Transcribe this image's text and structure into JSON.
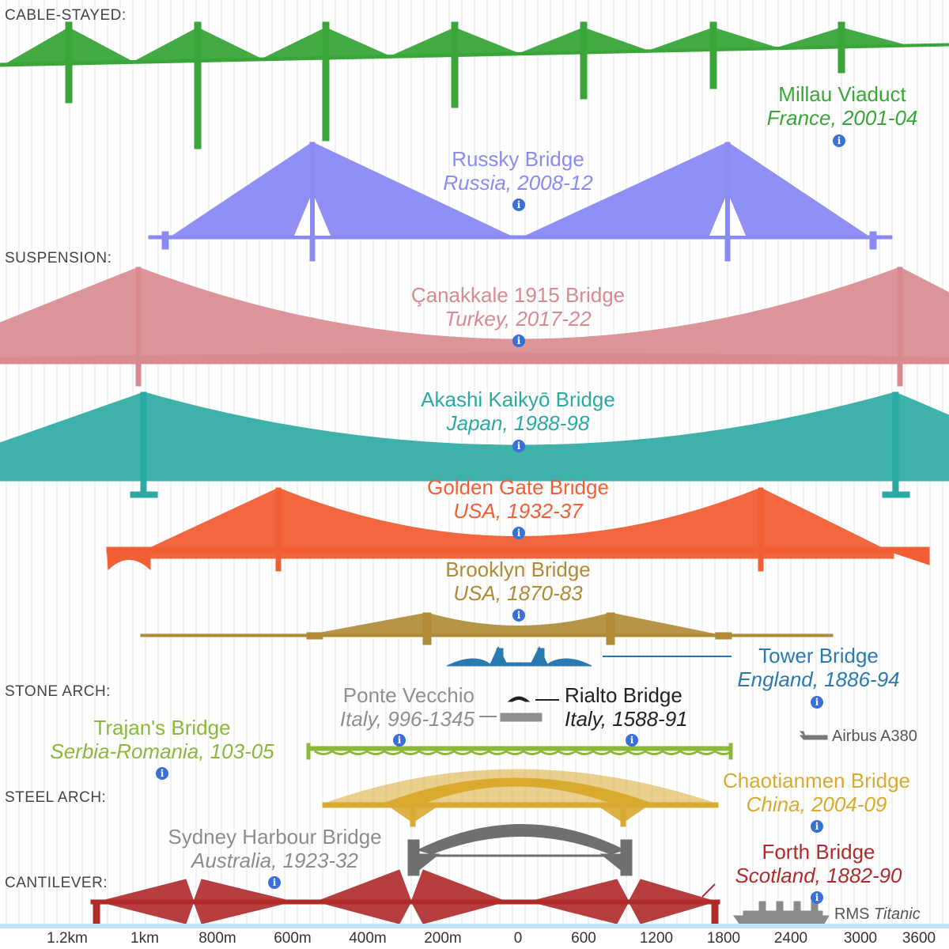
{
  "categories": {
    "cable_stayed": "CABLE-STAYED:",
    "suspension": "SUSPENSION:",
    "stone_arch": "STONE ARCH:",
    "steel_arch": "STEEL ARCH:",
    "cantilever": "CANTILEVER:"
  },
  "bridges": {
    "millau": {
      "name": "Millau Viaduct",
      "sub": "France, 2001-04",
      "color": "#3aa63a"
    },
    "russky": {
      "name": "Russky Bridge",
      "sub": "Russia, 2008-12",
      "color": "#8a8af5"
    },
    "canakkale": {
      "name": "Çanakkale 1915 Bridge",
      "sub": "Turkey, 2017-22",
      "color": "#d98a8e"
    },
    "akashi": {
      "name": "Akashi Kaikyō Bridge",
      "sub": "Japan, 1988-98",
      "color": "#2ba9a3"
    },
    "golden_gate": {
      "name": "Golden Gate Bridge",
      "sub": "USA, 1932-37",
      "color": "#f25f35"
    },
    "brooklyn": {
      "name": "Brooklyn Bridge",
      "sub": "USA, 1870-83",
      "color": "#b08a35"
    },
    "tower": {
      "name": "Tower Bridge",
      "sub": "England, 1886-94",
      "color": "#2a7ab0"
    },
    "ponte_vecchio": {
      "name": "Ponte Vecchio",
      "sub": "Italy, 996-1345",
      "color": "#8f8f8f"
    },
    "rialto": {
      "name": "Rialto Bridge",
      "sub": "Italy, 1588-91",
      "color": "#222222"
    },
    "trajan": {
      "name": "Trajan's Bridge",
      "sub": "Serbia-Romania, 103-05",
      "color": "#8ab83a"
    },
    "chaotianmen": {
      "name": "Chaotianmen Bridge",
      "sub": "China, 2004-09",
      "color": "#d9aa30"
    },
    "sydney": {
      "name": "Sydney Harbour Bridge",
      "sub": "Australia, 1923-32",
      "color": "#8c8c8c"
    },
    "forth": {
      "name": "Forth Bridge",
      "sub": "Scotland, 1882-90",
      "color": "#b02a2a"
    }
  },
  "comparisons": {
    "airbus": "Airbus A380",
    "titanic_prefix": "RMS ",
    "titanic_name": "Titanic"
  },
  "info_symbol": "i",
  "axis": {
    "left_ticks": [
      "1.2km",
      "1km",
      "800m",
      "600m",
      "400m",
      "200m",
      "0"
    ],
    "right_ticks": [
      "600",
      "1200",
      "1800",
      "2400",
      "3000",
      "3600"
    ],
    "left_unit": "meters",
    "right_unit": "feet"
  },
  "colors": {
    "gridline": "#e6e6e6",
    "water": "#bfe3f5",
    "info": "#3a6fd8"
  }
}
